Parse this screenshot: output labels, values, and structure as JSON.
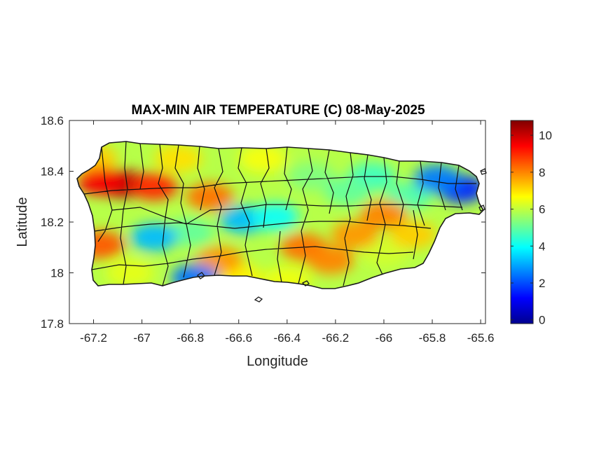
{
  "chart_data": {
    "type": "heatmap",
    "title": "MAX-MIN AIR TEMPERATURE (C) 08-May-2025",
    "xlabel": "Longitude",
    "ylabel": "Latitude",
    "xlim": [
      -67.3,
      -65.58
    ],
    "ylim": [
      17.8,
      18.6
    ],
    "xticks": [
      -67.2,
      -67,
      -66.8,
      -66.6,
      -66.4,
      -66.2,
      -66,
      -65.8,
      -65.6
    ],
    "xtick_labels": [
      "-67.2",
      "-67",
      "-66.8",
      "-66.6",
      "-66.4",
      "-66.2",
      "-66",
      "-65.8",
      "-65.6"
    ],
    "yticks": [
      17.8,
      18,
      18.2,
      18.4,
      18.6
    ],
    "ytick_labels": [
      "17.8",
      "18",
      "18.2",
      "18.4",
      "18.6"
    ],
    "colorbar": {
      "colormap": "jet",
      "range": [
        -0.2,
        10.8
      ],
      "ticks": [
        0,
        2,
        4,
        6,
        8,
        10
      ],
      "tick_labels": [
        "0",
        "2",
        "4",
        "6",
        "8",
        "10"
      ]
    },
    "hotspots": [
      {
        "lon": -67.08,
        "lat": 18.35,
        "value": 10.3
      },
      {
        "lon": -67.17,
        "lat": 18.36,
        "value": 9.5
      },
      {
        "lon": -66.95,
        "lat": 18.34,
        "value": 9.0
      },
      {
        "lon": -67.17,
        "lat": 18.11,
        "value": 8.5
      },
      {
        "lon": -66.72,
        "lat": 18.3,
        "value": 8.2
      },
      {
        "lon": -66.33,
        "lat": 18.1,
        "value": 8.2
      },
      {
        "lon": -66.22,
        "lat": 18.05,
        "value": 8.0
      },
      {
        "lon": -66.0,
        "lat": 18.23,
        "value": 8.0
      },
      {
        "lon": -66.68,
        "lat": 18.05,
        "value": 7.8
      },
      {
        "lon": -66.12,
        "lat": 18.15,
        "value": 7.8
      },
      {
        "lon": -65.88,
        "lat": 18.15,
        "value": 7.2
      }
    ],
    "coldspots": [
      {
        "lon": -65.68,
        "lat": 18.33,
        "value": 1.6
      },
      {
        "lon": -65.78,
        "lat": 18.37,
        "value": 2.5
      },
      {
        "lon": -66.95,
        "lat": 18.14,
        "value": 3.2
      },
      {
        "lon": -66.58,
        "lat": 18.21,
        "value": 3.2
      },
      {
        "lon": -66.78,
        "lat": 17.98,
        "value": 2.4
      },
      {
        "lon": -66.45,
        "lat": 18.22,
        "value": 4.0
      }
    ]
  }
}
